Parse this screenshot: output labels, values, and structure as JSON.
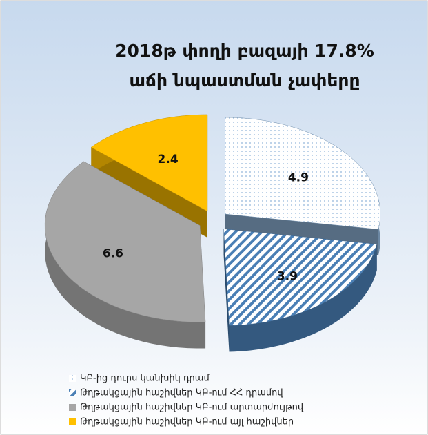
{
  "chart_data": {
    "type": "pie",
    "title": [
      "2018թ փողի բազայի 17.8%",
      "աճի նպաստման չափերը"
    ],
    "categories": [
      "ԿԲ-ից դուրս կանխիկ դրամ",
      "Թղթակցային հաշիվներ ԿԲ-ում ՀՀ դրամով",
      "Թղթակցային հաշիվներ ԿԲ-ում արտարժույթով",
      "Թղթակցային հաշիվներ ԿԲ-ում այլ հաշիվներ"
    ],
    "values": [
      4.9,
      3.9,
      6.6,
      2.4
    ],
    "colors": [
      "#8fb4d9",
      "#4a7fb5",
      "#a6a6a6",
      "#ffc000"
    ],
    "legend": "bottom"
  }
}
